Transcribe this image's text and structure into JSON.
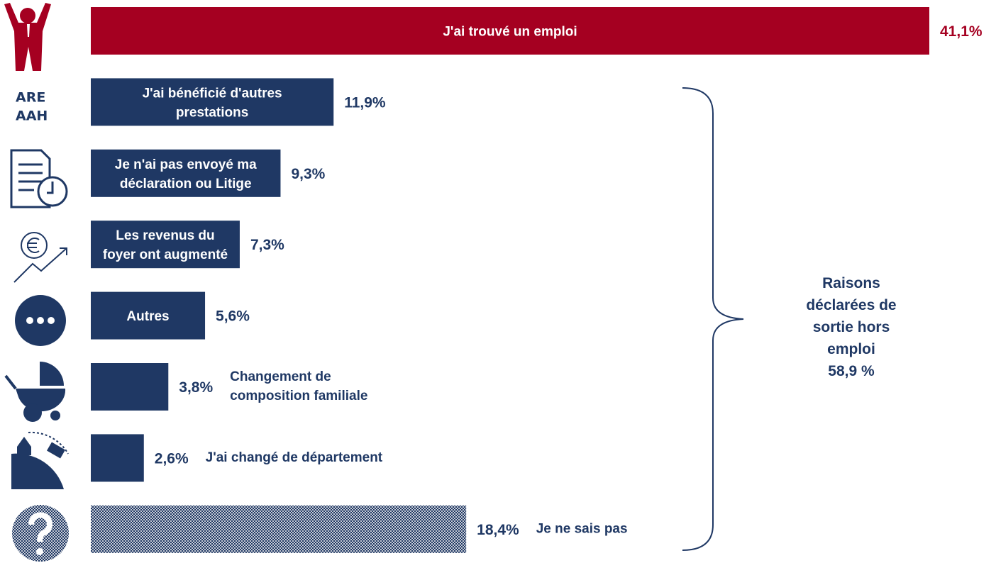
{
  "chart_data": {
    "type": "bar",
    "orientation": "horizontal",
    "categories": [
      "J'ai trouvé un emploi",
      "J'ai bénéficié d'autres\nprestations",
      "Je n'ai pas envoyé ma\ndéclaration ou Litige",
      "Les revenus du\nfoyer ont augmenté",
      "Autres",
      "Changement de\ncomposition familiale",
      "J'ai changé de département",
      "Je ne sais pas"
    ],
    "values": [
      41.1,
      11.9,
      9.3,
      7.3,
      5.6,
      3.8,
      2.6,
      18.4
    ],
    "value_labels": [
      "41,1%",
      "11,9%",
      "9,3%",
      "7,3%",
      "5,6%",
      "3,8%",
      "2,6%",
      "18,4%"
    ],
    "colors": [
      "#a50021",
      "#1f3864",
      "#1f3864",
      "#1f3864",
      "#1f3864",
      "#1f3864",
      "#1f3864",
      "#1f3864"
    ],
    "bar_styles": [
      "solid",
      "solid",
      "solid",
      "solid",
      "solid",
      "solid",
      "solid",
      "checkered"
    ],
    "label_position": [
      "inside",
      "inside",
      "inside",
      "inside",
      "inside",
      "outside",
      "outside",
      "outside"
    ],
    "xlim": [
      0,
      41.1
    ],
    "icon_texts": [
      "ARE",
      "AAH"
    ],
    "annotation": "Raisons\ndéclarées de\nsortie hors\nemploi\n58,9 %"
  }
}
